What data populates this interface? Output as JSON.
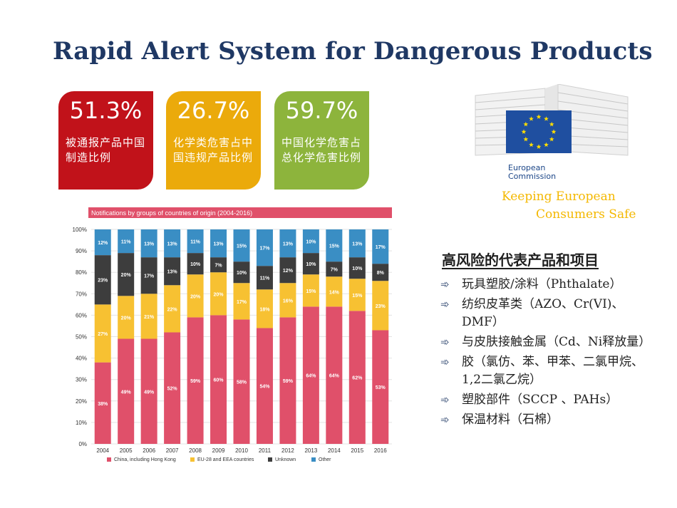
{
  "title": "Rapid Alert System for Dangerous Products",
  "stats": [
    {
      "value": "51.3%",
      "desc": "被通报产品中国制造比例",
      "color": "#c1121a"
    },
    {
      "value": "26.7%",
      "desc": "化学类危害占中国违规产品比例",
      "color": "#ebaa0b"
    },
    {
      "value": "59.7%",
      "desc": "中国化学危害占总化学危害比例",
      "color": "#8db43c"
    }
  ],
  "ec": {
    "name_line1": "European",
    "name_line2": "Commission",
    "tagline1": "Keeping European",
    "tagline2": "Consumers Safe"
  },
  "risk_panel": {
    "title": "高风险的代表产品和项目",
    "bullet_icon": "double-arrow-icon",
    "items": [
      "玩具塑胶/涂料（Phthalate）",
      "纺织皮革类（AZO、Cr(VI)、DMF）",
      "与皮肤接触金属（Cd、Ni释放量）",
      "胶（氯仿、苯、甲苯、二氯甲烷、1,2二氯乙烷）",
      "塑胶部件（SCCP 、PAHs）",
      "保温材料（石棉）"
    ]
  },
  "chart_data": {
    "type": "bar",
    "stacked": true,
    "title": "Notifications by groups of countries of origin (2004-2016)",
    "categories": [
      "2004",
      "2005",
      "2006",
      "2007",
      "2008",
      "2009",
      "2010",
      "2011",
      "2012",
      "2013",
      "2014",
      "2015",
      "2016"
    ],
    "ylim": [
      0,
      100
    ],
    "yticks": [
      "0%",
      "10%",
      "20%",
      "30%",
      "40%",
      "50%",
      "60%",
      "70%",
      "80%",
      "90%",
      "100%"
    ],
    "series": [
      {
        "name": "China, including Hong Kong",
        "color": "#e0506a",
        "values": [
          38,
          49,
          49,
          52,
          59,
          60,
          58,
          54,
          59,
          64,
          64,
          62,
          53
        ],
        "labels": [
          "38%",
          "49%",
          "49%",
          "52%",
          "59%",
          "60%",
          "58%",
          "54%",
          "59%",
          "64%",
          "64%",
          "62%",
          "53%"
        ]
      },
      {
        "name": "EU-28 and EEA countries",
        "color": "#f7c132",
        "values": [
          27,
          20,
          21,
          22,
          20,
          20,
          17,
          18,
          16,
          15,
          14,
          15,
          23
        ],
        "labels": [
          "27%",
          "20%",
          "21%",
          "22%",
          "20%",
          "20%",
          "17%",
          "18%",
          "16%",
          "15%",
          "14%",
          "15%",
          "23%"
        ]
      },
      {
        "name": "Unknown",
        "color": "#3d3d3d",
        "values": [
          23,
          20,
          17,
          13,
          10,
          7,
          10,
          11,
          12,
          10,
          7,
          10,
          8
        ],
        "labels": [
          "23%",
          "20%",
          "17%",
          "13%",
          "10%",
          "7%",
          "10%",
          "11%",
          "12%",
          "10%",
          "7%",
          "10%",
          "8%"
        ]
      },
      {
        "name": "Other",
        "color": "#3a8ec4",
        "values": [
          12,
          11,
          13,
          13,
          11,
          13,
          15,
          17,
          13,
          10,
          15,
          13,
          17
        ],
        "labels": [
          "12%",
          "11%",
          "13%",
          "13%",
          "11%",
          "13%",
          "15%",
          "17%",
          "13%",
          "10%",
          "15%",
          "13%",
          "17%"
        ]
      }
    ]
  }
}
